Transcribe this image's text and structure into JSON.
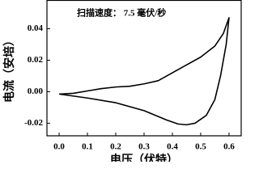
{
  "chart_data": {
    "type": "line",
    "annotation": "扫描速度： 7.5 毫伏/秒",
    "x_label": "电压（伏特）",
    "y_label": "电流（安培）",
    "x": [
      0.0,
      0.05,
      0.1,
      0.15,
      0.2,
      0.25,
      0.3,
      0.35,
      0.4,
      0.45,
      0.5,
      0.55,
      0.58,
      0.6,
      0.59,
      0.57,
      0.55,
      0.52,
      0.48,
      0.45,
      0.42,
      0.38,
      0.3,
      0.2,
      0.1,
      0.0
    ],
    "values": [
      -0.0015,
      -0.001,
      0.0005,
      0.002,
      0.003,
      0.0035,
      0.005,
      0.007,
      0.012,
      0.017,
      0.022,
      0.029,
      0.037,
      0.047,
      0.03,
      0.01,
      -0.005,
      -0.015,
      -0.02,
      -0.021,
      -0.0205,
      -0.018,
      -0.012,
      -0.007,
      -0.004,
      -0.0015
    ],
    "color": "#000000",
    "xlim": [
      -0.043,
      0.643
    ],
    "ylim": [
      -0.028,
      0.058
    ],
    "xticks": [
      {
        "value": 0,
        "label": "0.0"
      },
      0.1,
      0.2,
      0.3,
      0.4,
      0.5,
      0.6
    ],
    "yticks": [
      -0.02,
      {
        "value": 0,
        "label": "0.00"
      },
      0.02,
      0.04
    ]
  }
}
